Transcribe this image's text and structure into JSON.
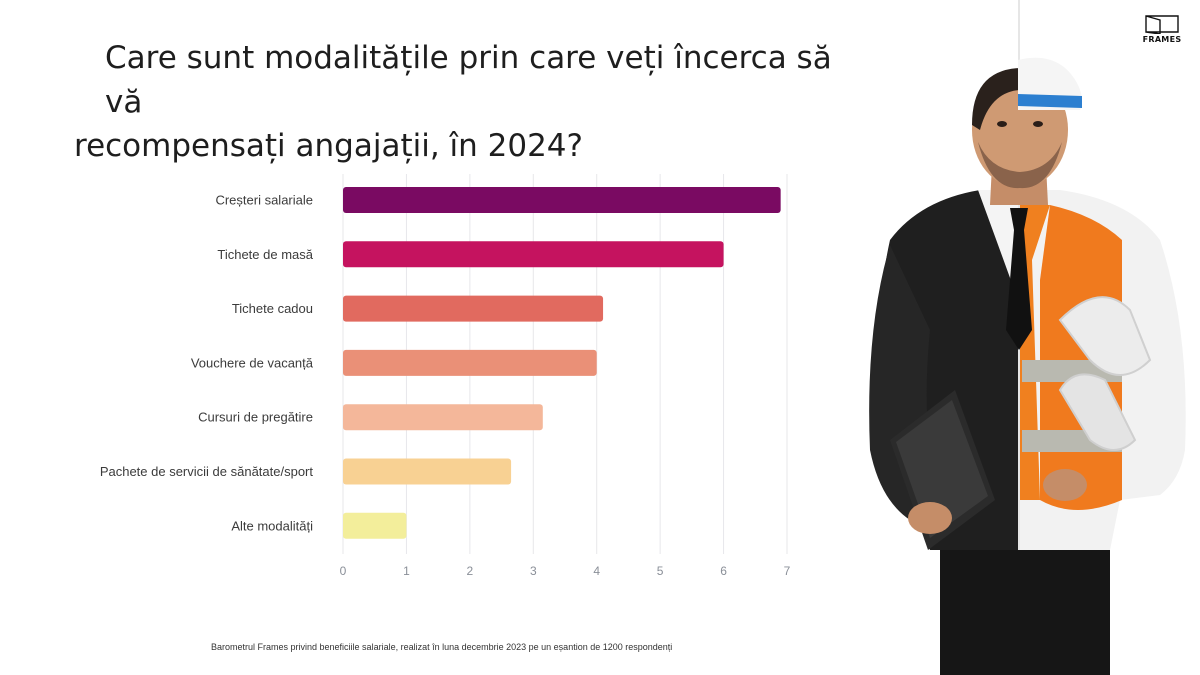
{
  "title": {
    "line1": "Care sunt modalitățile prin care veți încerca să vă",
    "line2": "recompensați angajații, în 2024?"
  },
  "footnote": "Barometrul Frames privind beneficiile salariale, realizat în luna decembrie 2023 pe un eșantion de 1200 respondenți",
  "logo": {
    "text": "FRAMES",
    "icon": "frames-logo-icon"
  },
  "photo": {
    "icon": "businessman-engineer-illustration"
  },
  "chart_data": {
    "type": "bar",
    "orientation": "horizontal",
    "categories": [
      "Creșteri salariale",
      "Tichete de masă",
      "Tichete cadou",
      "Vouchere de vacanță",
      "Cursuri de pregătire",
      "Pachete de servicii de sănătate/sport",
      "Alte modalități"
    ],
    "values": [
      6.9,
      6.0,
      4.1,
      4.0,
      3.15,
      2.65,
      1.0
    ],
    "colors": [
      "#7a0a62",
      "#c5135f",
      "#e16a5f",
      "#ea9077",
      "#f4b79a",
      "#f8d193",
      "#f3ee9b"
    ],
    "xlim": [
      0,
      7
    ],
    "xticks": [
      "0",
      "1",
      "2",
      "3",
      "4",
      "5",
      "6",
      "7"
    ],
    "grid": true,
    "legend": "none",
    "xlabel": "",
    "ylabel": ""
  }
}
